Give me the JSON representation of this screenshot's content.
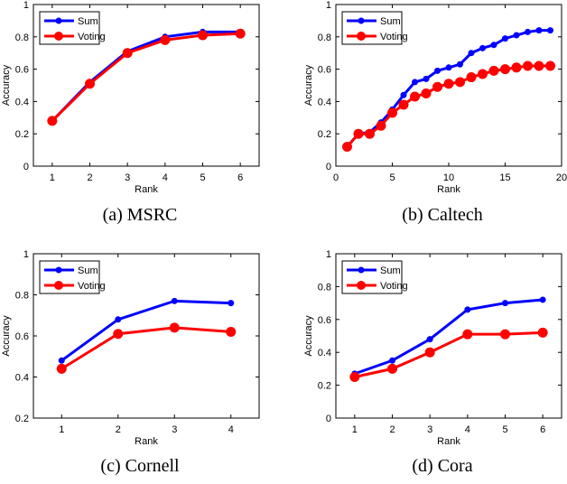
{
  "chart_data": [
    {
      "type": "line",
      "caption": "(a) MSRC",
      "xlabel": "Rank",
      "ylabel": "Accuracy",
      "xlim": [
        0.5,
        6.5
      ],
      "ylim": [
        0,
        1
      ],
      "xticks": [
        1,
        2,
        3,
        4,
        5,
        6
      ],
      "yticks": [
        0,
        0.2,
        0.4,
        0.6,
        0.8,
        1
      ],
      "x": [
        1,
        2,
        3,
        4,
        5,
        6
      ],
      "legend": "top-left",
      "series": [
        {
          "name": "Sum",
          "color": "#0000ff",
          "values": [
            0.28,
            0.52,
            0.71,
            0.8,
            0.83,
            0.83
          ]
        },
        {
          "name": "Voting",
          "color": "#ff0000",
          "values": [
            0.28,
            0.51,
            0.7,
            0.78,
            0.81,
            0.82
          ]
        }
      ]
    },
    {
      "type": "line",
      "caption": "(b) Caltech",
      "xlabel": "Rank",
      "ylabel": "Accuracy",
      "xlim": [
        0,
        20
      ],
      "ylim": [
        0,
        1
      ],
      "xticks": [
        0,
        5,
        10,
        15,
        20
      ],
      "yticks": [
        0,
        0.2,
        0.4,
        0.6,
        0.8,
        1
      ],
      "x": [
        1,
        2,
        3,
        4,
        5,
        6,
        7,
        8,
        9,
        10,
        11,
        12,
        13,
        14,
        15,
        16,
        17,
        18,
        19
      ],
      "legend": "top-left",
      "series": [
        {
          "name": "Sum",
          "color": "#0000ff",
          "values": [
            0.12,
            0.2,
            0.21,
            0.27,
            0.35,
            0.44,
            0.52,
            0.54,
            0.59,
            0.61,
            0.63,
            0.7,
            0.73,
            0.75,
            0.79,
            0.81,
            0.83,
            0.84,
            0.84
          ]
        },
        {
          "name": "Voting",
          "color": "#ff0000",
          "values": [
            0.12,
            0.2,
            0.2,
            0.25,
            0.33,
            0.38,
            0.43,
            0.45,
            0.49,
            0.51,
            0.52,
            0.55,
            0.57,
            0.59,
            0.6,
            0.61,
            0.62,
            0.62,
            0.62
          ]
        }
      ]
    },
    {
      "type": "line",
      "caption": "(c) Cornell",
      "xlabel": "Rank",
      "ylabel": "Accuracy",
      "xlim": [
        0.5,
        4.5
      ],
      "ylim": [
        0.2,
        1
      ],
      "xticks": [
        1,
        2,
        3,
        4
      ],
      "yticks": [
        0.2,
        0.4,
        0.6,
        0.8,
        1
      ],
      "x": [
        1,
        2,
        3,
        4
      ],
      "legend": "top-left",
      "series": [
        {
          "name": "Sum",
          "color": "#0000ff",
          "values": [
            0.48,
            0.68,
            0.77,
            0.76
          ]
        },
        {
          "name": "Voting",
          "color": "#ff0000",
          "values": [
            0.44,
            0.61,
            0.64,
            0.62
          ]
        }
      ]
    },
    {
      "type": "line",
      "caption": "(d) Cora",
      "xlabel": "Rank",
      "ylabel": "Accuracy",
      "xlim": [
        0.5,
        6.5
      ],
      "ylim": [
        0,
        1
      ],
      "xticks": [
        1,
        2,
        3,
        4,
        5,
        6
      ],
      "yticks": [
        0,
        0.2,
        0.4,
        0.6,
        0.8,
        1
      ],
      "x": [
        1,
        2,
        3,
        4,
        5,
        6
      ],
      "legend": "top-left",
      "series": [
        {
          "name": "Sum",
          "color": "#0000ff",
          "values": [
            0.27,
            0.35,
            0.48,
            0.66,
            0.7,
            0.72
          ]
        },
        {
          "name": "Voting",
          "color": "#ff0000",
          "values": [
            0.25,
            0.3,
            0.4,
            0.51,
            0.51,
            0.52
          ]
        }
      ]
    }
  ]
}
